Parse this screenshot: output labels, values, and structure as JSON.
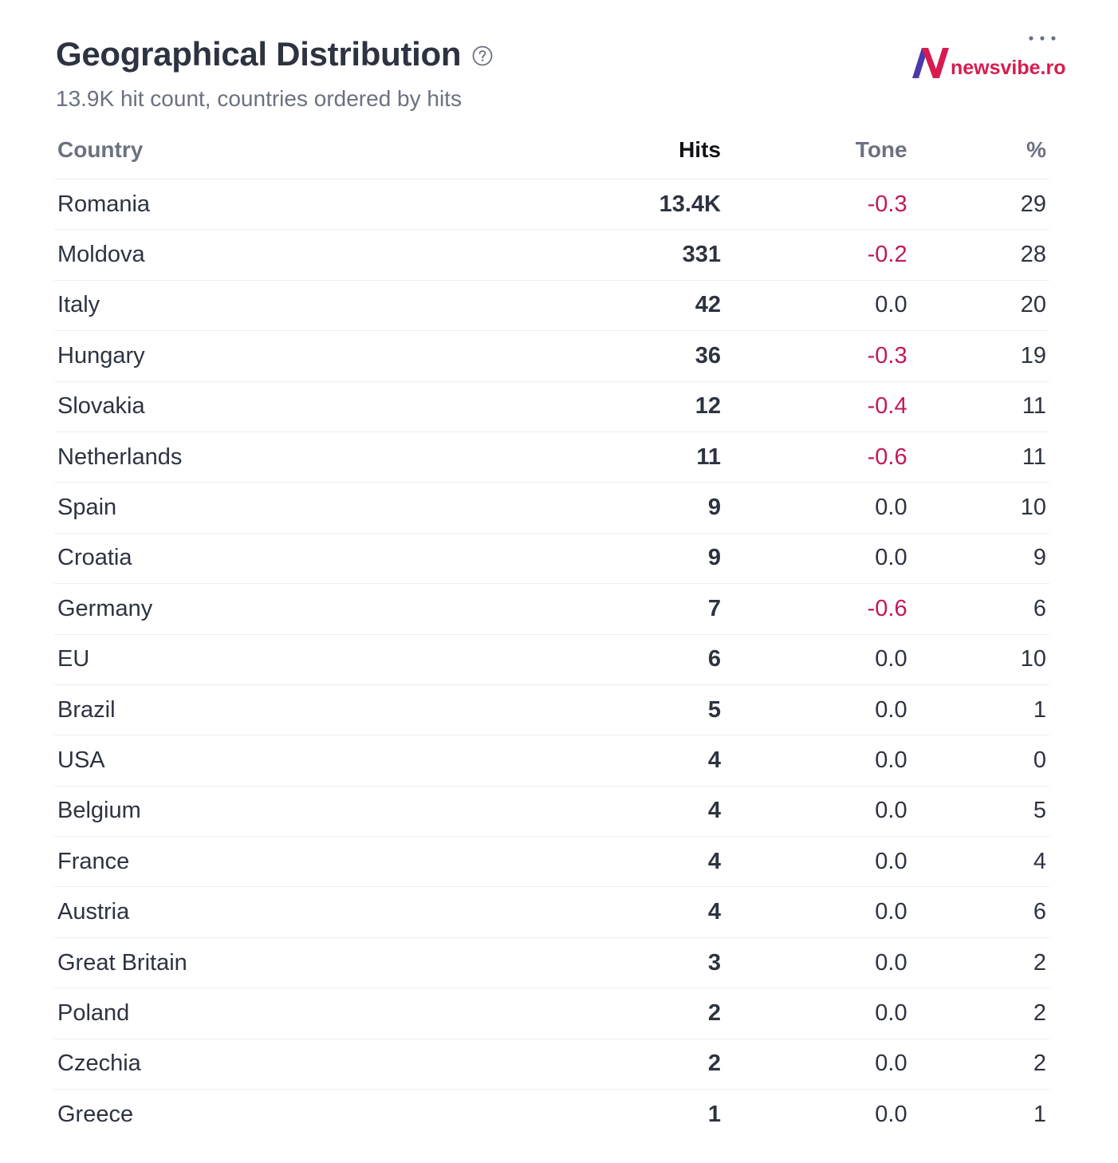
{
  "widget": {
    "title": "Geographical Distribution",
    "subtitle": "13.9K hit count, countries ordered by hits",
    "help_icon": "question-circle-icon",
    "more_icon": "ellipsis-icon",
    "logo_text": "newsvibe.ro",
    "colors": {
      "title": "#2d3340",
      "negative_tone": "#c2185b",
      "brand_red": "#d81b4f",
      "brand_purple": "#4a3aa8"
    }
  },
  "table": {
    "headers": {
      "country": "Country",
      "hits": "Hits",
      "tone": "Tone",
      "percent": "%"
    },
    "rows": [
      {
        "country": "Romania",
        "hits": "13.4K",
        "tone": "-0.3",
        "percent": "29"
      },
      {
        "country": "Moldova",
        "hits": "331",
        "tone": "-0.2",
        "percent": "28"
      },
      {
        "country": "Italy",
        "hits": "42",
        "tone": "0.0",
        "percent": "20"
      },
      {
        "country": "Hungary",
        "hits": "36",
        "tone": "-0.3",
        "percent": "19"
      },
      {
        "country": "Slovakia",
        "hits": "12",
        "tone": "-0.4",
        "percent": "11"
      },
      {
        "country": "Netherlands",
        "hits": "11",
        "tone": "-0.6",
        "percent": "11"
      },
      {
        "country": "Spain",
        "hits": "9",
        "tone": "0.0",
        "percent": "10"
      },
      {
        "country": "Croatia",
        "hits": "9",
        "tone": "0.0",
        "percent": "9"
      },
      {
        "country": "Germany",
        "hits": "7",
        "tone": "-0.6",
        "percent": "6"
      },
      {
        "country": "EU",
        "hits": "6",
        "tone": "0.0",
        "percent": "10"
      },
      {
        "country": "Brazil",
        "hits": "5",
        "tone": "0.0",
        "percent": "1"
      },
      {
        "country": "USA",
        "hits": "4",
        "tone": "0.0",
        "percent": "0"
      },
      {
        "country": "Belgium",
        "hits": "4",
        "tone": "0.0",
        "percent": "5"
      },
      {
        "country": "France",
        "hits": "4",
        "tone": "0.0",
        "percent": "4"
      },
      {
        "country": "Austria",
        "hits": "4",
        "tone": "0.0",
        "percent": "6"
      },
      {
        "country": "Great Britain",
        "hits": "3",
        "tone": "0.0",
        "percent": "2"
      },
      {
        "country": "Poland",
        "hits": "2",
        "tone": "0.0",
        "percent": "2"
      },
      {
        "country": "Czechia",
        "hits": "2",
        "tone": "0.0",
        "percent": "2"
      },
      {
        "country": "Greece",
        "hits": "1",
        "tone": "0.0",
        "percent": "1"
      }
    ]
  }
}
